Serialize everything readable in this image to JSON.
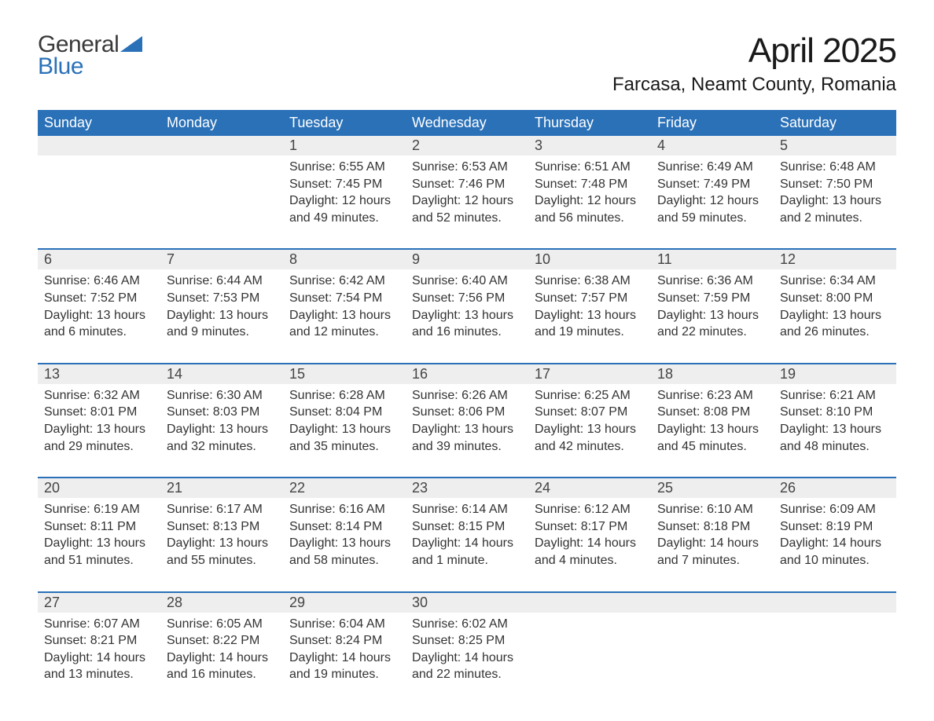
{
  "logo": {
    "general": "General",
    "blue": "Blue",
    "icon_color": "#2a71b8"
  },
  "title": "April 2025",
  "location": "Farcasa, Neamt County, Romania",
  "colors": {
    "header_bg": "#2a71b8",
    "header_text": "#ffffff",
    "daynum_bg": "#eeeeee",
    "text": "#333333",
    "page_bg": "#ffffff"
  },
  "typography": {
    "title_fontsize": 44,
    "location_fontsize": 24,
    "dow_fontsize": 18,
    "daynum_fontsize": 18,
    "body_fontsize": 16,
    "font_family": "Arial"
  },
  "days_of_week": [
    "Sunday",
    "Monday",
    "Tuesday",
    "Wednesday",
    "Thursday",
    "Friday",
    "Saturday"
  ],
  "weeks": [
    [
      {
        "empty": true
      },
      {
        "empty": true
      },
      {
        "num": "1",
        "sunrise": "Sunrise: 6:55 AM",
        "sunset": "Sunset: 7:45 PM",
        "day1": "Daylight: 12 hours",
        "day2": "and 49 minutes."
      },
      {
        "num": "2",
        "sunrise": "Sunrise: 6:53 AM",
        "sunset": "Sunset: 7:46 PM",
        "day1": "Daylight: 12 hours",
        "day2": "and 52 minutes."
      },
      {
        "num": "3",
        "sunrise": "Sunrise: 6:51 AM",
        "sunset": "Sunset: 7:48 PM",
        "day1": "Daylight: 12 hours",
        "day2": "and 56 minutes."
      },
      {
        "num": "4",
        "sunrise": "Sunrise: 6:49 AM",
        "sunset": "Sunset: 7:49 PM",
        "day1": "Daylight: 12 hours",
        "day2": "and 59 minutes."
      },
      {
        "num": "5",
        "sunrise": "Sunrise: 6:48 AM",
        "sunset": "Sunset: 7:50 PM",
        "day1": "Daylight: 13 hours",
        "day2": "and 2 minutes."
      }
    ],
    [
      {
        "num": "6",
        "sunrise": "Sunrise: 6:46 AM",
        "sunset": "Sunset: 7:52 PM",
        "day1": "Daylight: 13 hours",
        "day2": "and 6 minutes."
      },
      {
        "num": "7",
        "sunrise": "Sunrise: 6:44 AM",
        "sunset": "Sunset: 7:53 PM",
        "day1": "Daylight: 13 hours",
        "day2": "and 9 minutes."
      },
      {
        "num": "8",
        "sunrise": "Sunrise: 6:42 AM",
        "sunset": "Sunset: 7:54 PM",
        "day1": "Daylight: 13 hours",
        "day2": "and 12 minutes."
      },
      {
        "num": "9",
        "sunrise": "Sunrise: 6:40 AM",
        "sunset": "Sunset: 7:56 PM",
        "day1": "Daylight: 13 hours",
        "day2": "and 16 minutes."
      },
      {
        "num": "10",
        "sunrise": "Sunrise: 6:38 AM",
        "sunset": "Sunset: 7:57 PM",
        "day1": "Daylight: 13 hours",
        "day2": "and 19 minutes."
      },
      {
        "num": "11",
        "sunrise": "Sunrise: 6:36 AM",
        "sunset": "Sunset: 7:59 PM",
        "day1": "Daylight: 13 hours",
        "day2": "and 22 minutes."
      },
      {
        "num": "12",
        "sunrise": "Sunrise: 6:34 AM",
        "sunset": "Sunset: 8:00 PM",
        "day1": "Daylight: 13 hours",
        "day2": "and 26 minutes."
      }
    ],
    [
      {
        "num": "13",
        "sunrise": "Sunrise: 6:32 AM",
        "sunset": "Sunset: 8:01 PM",
        "day1": "Daylight: 13 hours",
        "day2": "and 29 minutes."
      },
      {
        "num": "14",
        "sunrise": "Sunrise: 6:30 AM",
        "sunset": "Sunset: 8:03 PM",
        "day1": "Daylight: 13 hours",
        "day2": "and 32 minutes."
      },
      {
        "num": "15",
        "sunrise": "Sunrise: 6:28 AM",
        "sunset": "Sunset: 8:04 PM",
        "day1": "Daylight: 13 hours",
        "day2": "and 35 minutes."
      },
      {
        "num": "16",
        "sunrise": "Sunrise: 6:26 AM",
        "sunset": "Sunset: 8:06 PM",
        "day1": "Daylight: 13 hours",
        "day2": "and 39 minutes."
      },
      {
        "num": "17",
        "sunrise": "Sunrise: 6:25 AM",
        "sunset": "Sunset: 8:07 PM",
        "day1": "Daylight: 13 hours",
        "day2": "and 42 minutes."
      },
      {
        "num": "18",
        "sunrise": "Sunrise: 6:23 AM",
        "sunset": "Sunset: 8:08 PM",
        "day1": "Daylight: 13 hours",
        "day2": "and 45 minutes."
      },
      {
        "num": "19",
        "sunrise": "Sunrise: 6:21 AM",
        "sunset": "Sunset: 8:10 PM",
        "day1": "Daylight: 13 hours",
        "day2": "and 48 minutes."
      }
    ],
    [
      {
        "num": "20",
        "sunrise": "Sunrise: 6:19 AM",
        "sunset": "Sunset: 8:11 PM",
        "day1": "Daylight: 13 hours",
        "day2": "and 51 minutes."
      },
      {
        "num": "21",
        "sunrise": "Sunrise: 6:17 AM",
        "sunset": "Sunset: 8:13 PM",
        "day1": "Daylight: 13 hours",
        "day2": "and 55 minutes."
      },
      {
        "num": "22",
        "sunrise": "Sunrise: 6:16 AM",
        "sunset": "Sunset: 8:14 PM",
        "day1": "Daylight: 13 hours",
        "day2": "and 58 minutes."
      },
      {
        "num": "23",
        "sunrise": "Sunrise: 6:14 AM",
        "sunset": "Sunset: 8:15 PM",
        "day1": "Daylight: 14 hours",
        "day2": "and 1 minute."
      },
      {
        "num": "24",
        "sunrise": "Sunrise: 6:12 AM",
        "sunset": "Sunset: 8:17 PM",
        "day1": "Daylight: 14 hours",
        "day2": "and 4 minutes."
      },
      {
        "num": "25",
        "sunrise": "Sunrise: 6:10 AM",
        "sunset": "Sunset: 8:18 PM",
        "day1": "Daylight: 14 hours",
        "day2": "and 7 minutes."
      },
      {
        "num": "26",
        "sunrise": "Sunrise: 6:09 AM",
        "sunset": "Sunset: 8:19 PM",
        "day1": "Daylight: 14 hours",
        "day2": "and 10 minutes."
      }
    ],
    [
      {
        "num": "27",
        "sunrise": "Sunrise: 6:07 AM",
        "sunset": "Sunset: 8:21 PM",
        "day1": "Daylight: 14 hours",
        "day2": "and 13 minutes."
      },
      {
        "num": "28",
        "sunrise": "Sunrise: 6:05 AM",
        "sunset": "Sunset: 8:22 PM",
        "day1": "Daylight: 14 hours",
        "day2": "and 16 minutes."
      },
      {
        "num": "29",
        "sunrise": "Sunrise: 6:04 AM",
        "sunset": "Sunset: 8:24 PM",
        "day1": "Daylight: 14 hours",
        "day2": "and 19 minutes."
      },
      {
        "num": "30",
        "sunrise": "Sunrise: 6:02 AM",
        "sunset": "Sunset: 8:25 PM",
        "day1": "Daylight: 14 hours",
        "day2": "and 22 minutes."
      },
      {
        "empty": true
      },
      {
        "empty": true
      },
      {
        "empty": true
      }
    ]
  ]
}
